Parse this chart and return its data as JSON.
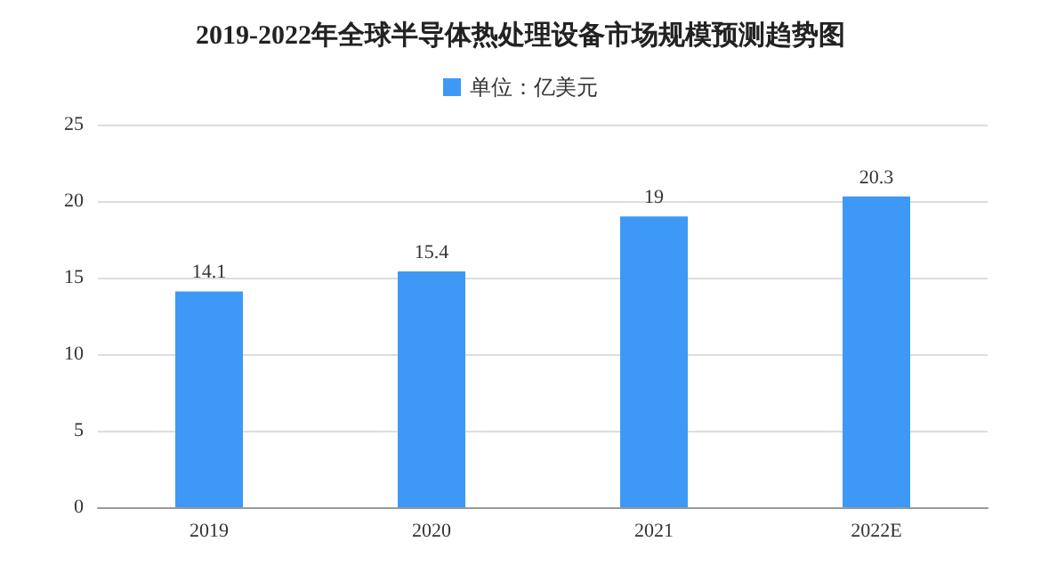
{
  "chart_data": {
    "type": "bar",
    "title": "2019-2022年全球半导体热处理设备市场规模预测趋势图",
    "categories": [
      "2019",
      "2020",
      "2021",
      "2022E"
    ],
    "series": [
      {
        "name": "单位：亿美元",
        "color": "#3d99f5",
        "values": [
          14.1,
          15.4,
          19,
          20.3
        ]
      }
    ],
    "ylim": [
      0,
      25
    ],
    "yticks": [
      0,
      5,
      10,
      15,
      20,
      25
    ],
    "grid": "y",
    "legend": "top",
    "data_labels": true
  }
}
